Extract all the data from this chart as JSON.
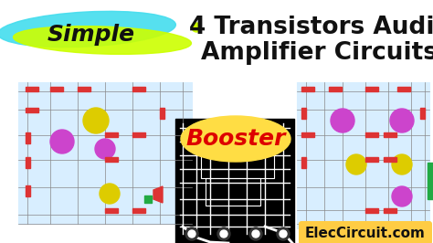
{
  "bg_color": "#ffffff",
  "title_line1": "4 Transistors Audio",
  "title_line2": "Amplifier Circuits",
  "title_color": "#111111",
  "title_fontsize": 19,
  "simple_text": "Simple",
  "simple_color": "#111111",
  "simple_fontsize": 18,
  "booster_text": "Booster",
  "booster_color": "#dd0000",
  "booster_bg": "#ffdd44",
  "booster_fontsize": 18,
  "eleccircuit_text": "ElecCircuit.com",
  "eleccircuit_color": "#111111",
  "eleccircuit_fontsize": 11,
  "eleccircuit_bg": "#ffcc44",
  "circuit1_bg": "#d8eeff",
  "circuit2_bg": "#000000",
  "circuit3_bg": "#d8eeff",
  "purple": "#cc44cc",
  "yellow": "#ddcc00",
  "red_comp": "#dd3333",
  "green": "#22aa44",
  "cyan_brush": "#44ddee",
  "yellow_brush": "#ccff00",
  "line_color": "#888888"
}
